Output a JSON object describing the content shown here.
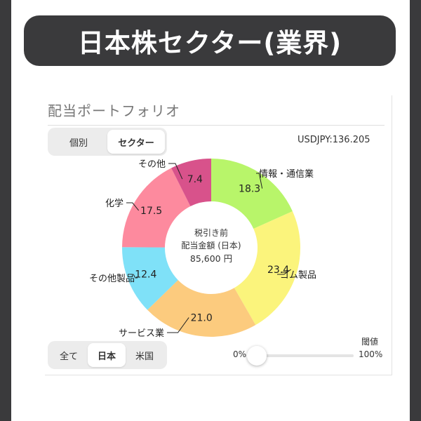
{
  "banner": {
    "title": "日本株セクター(業界)"
  },
  "card": {
    "title": "配当ポートフォリオ",
    "view_tabs": [
      {
        "label": "個別",
        "active": false
      },
      {
        "label": "セクター",
        "active": true
      }
    ],
    "fx_rate": "USDJPY:136.205",
    "region_tabs": [
      {
        "label": "全て",
        "active": false
      },
      {
        "label": "日本",
        "active": true
      },
      {
        "label": "米国",
        "active": false
      }
    ],
    "threshold": {
      "label": "閾値",
      "min_label": "0%",
      "max_label": "100%",
      "value": 0.0
    }
  },
  "chart_data": {
    "type": "pie",
    "donut": true,
    "center_text": [
      "税引き前",
      "配当金額 (日本)",
      "85,600 円"
    ],
    "slices": [
      {
        "label": "情報・通信業",
        "value": 18.3,
        "color": "#b8f56a"
      },
      {
        "label": "ゴム製品",
        "value": 23.4,
        "color": "#fbf47c"
      },
      {
        "label": "サービス業",
        "value": 21.0,
        "color": "#fccb7e"
      },
      {
        "label": "その他製品",
        "value": 12.4,
        "color": "#7fe1f8"
      },
      {
        "label": "化学",
        "value": 17.5,
        "color": "#fd8a9e"
      },
      {
        "label": "その他",
        "value": 7.4,
        "color": "#d8528b"
      }
    ]
  }
}
